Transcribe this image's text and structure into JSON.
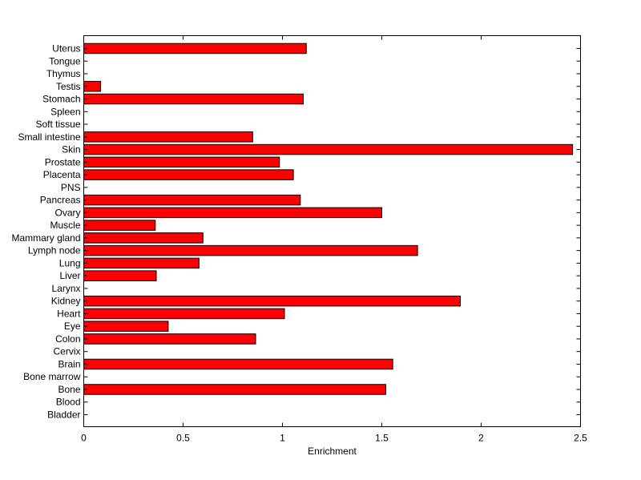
{
  "chart_data": {
    "type": "bar",
    "orientation": "horizontal",
    "xlabel": "Enrichment",
    "ylabel": "",
    "title": "",
    "xlim": [
      0,
      2.5
    ],
    "xticks": [
      0,
      0.5,
      1,
      1.5,
      2,
      2.5
    ],
    "xtick_labels": [
      "0",
      "0.5",
      "1",
      "1.5",
      "2",
      "2.5"
    ],
    "grid": false,
    "bar_color": "#ff0000",
    "edge_color": "#000000",
    "categories": [
      "Uterus",
      "Tongue",
      "Thymus",
      "Testis",
      "Stomach",
      "Spleen",
      "Soft tissue",
      "Small intestine",
      "Skin",
      "Prostate",
      "Placenta",
      "PNS",
      "Pancreas",
      "Ovary",
      "Muscle",
      "Mammary gland",
      "Lymph node",
      "Lung",
      "Liver",
      "Larynx",
      "Kidney",
      "Heart",
      "Eye",
      "Colon",
      "Cervix",
      "Brain",
      "Bone marrow",
      "Bone",
      "Blood",
      "Bladder"
    ],
    "values": [
      1.12,
      0,
      0,
      0.085,
      1.105,
      0,
      0,
      0.85,
      2.46,
      0.985,
      1.055,
      0,
      1.09,
      1.5,
      0.36,
      0.6,
      1.68,
      0.58,
      0.365,
      0,
      1.895,
      1.01,
      0.425,
      0.865,
      0,
      1.555,
      0,
      1.52,
      0,
      0
    ]
  }
}
